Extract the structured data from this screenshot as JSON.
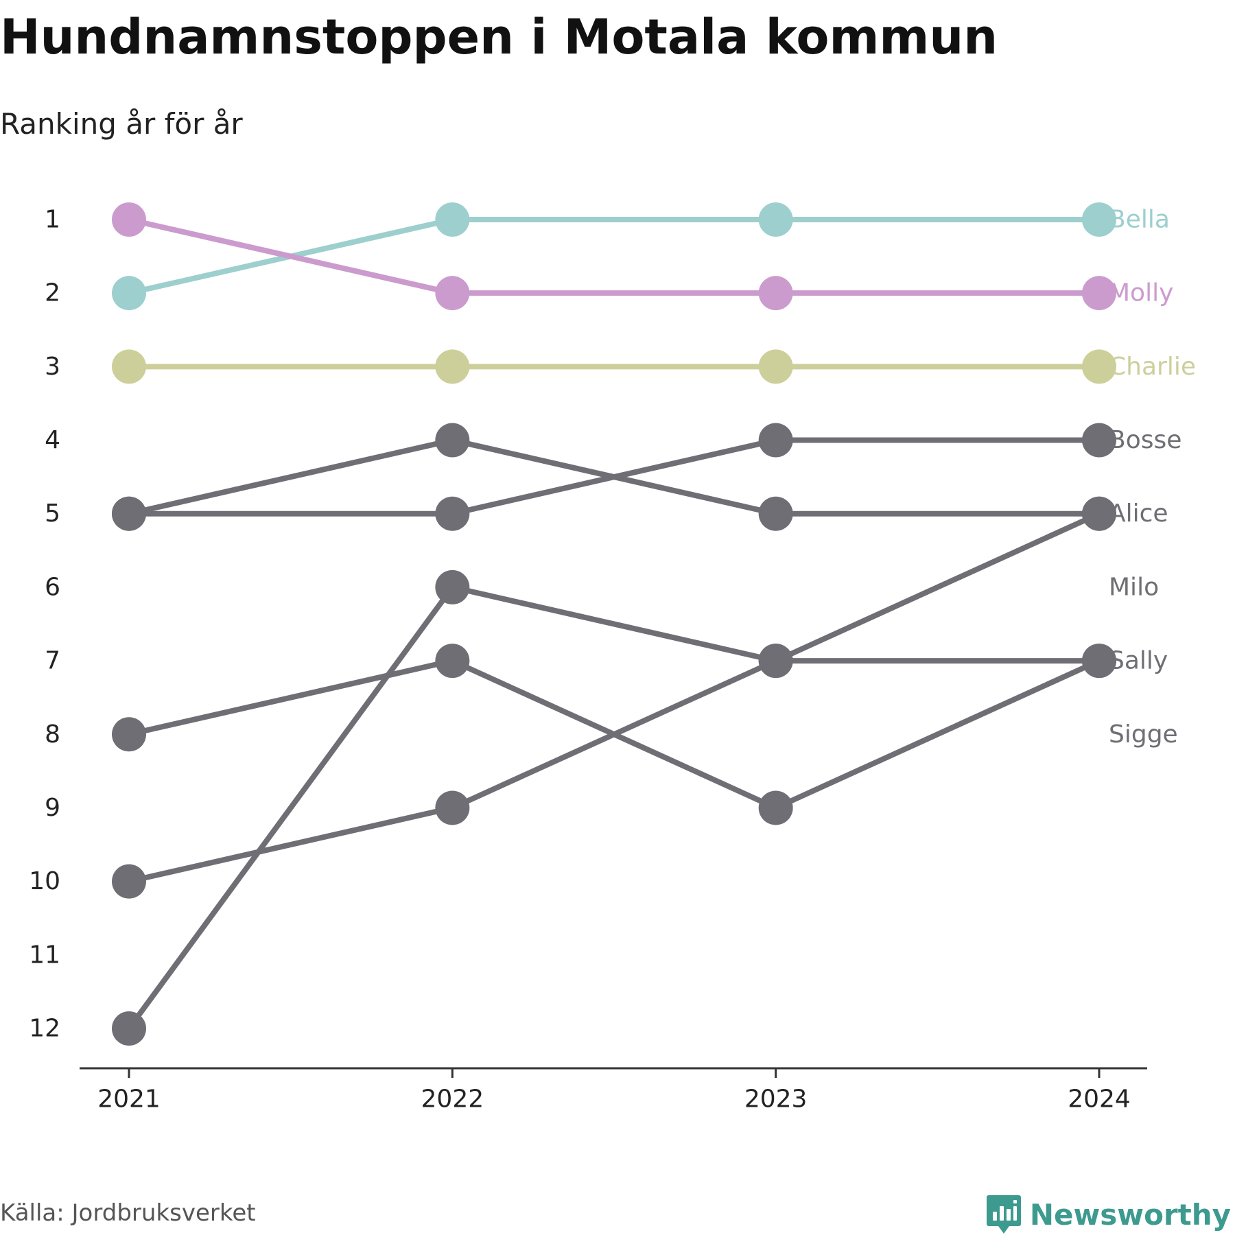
{
  "title": "Hundnamnstoppen i Motala kommun",
  "subtitle": "Ranking år för år",
  "source": "Källa: Jordbruksverket",
  "brand": "Newsworthy",
  "colors": {
    "highlight_grey": "#6e6e74",
    "axis": "#333333",
    "brand": "#3d9a8f"
  },
  "chart_data": {
    "type": "line",
    "x": [
      "2021",
      "2022",
      "2023",
      "2024"
    ],
    "ylim": [
      1,
      12
    ],
    "y_reversed": true,
    "y_ticks": [
      1,
      2,
      3,
      4,
      5,
      6,
      7,
      8,
      9,
      10,
      11,
      12
    ],
    "series": [
      {
        "name": "Bella",
        "color": "#9ccfcd",
        "values": [
          2,
          1,
          1,
          1
        ]
      },
      {
        "name": "Molly",
        "color": "#cc9bce",
        "values": [
          1,
          2,
          2,
          2
        ]
      },
      {
        "name": "Charlie",
        "color": "#cdcf9b",
        "values": [
          3,
          3,
          3,
          3
        ]
      },
      {
        "name": "Bosse",
        "color": "#6e6e74",
        "values": [
          5,
          5,
          4,
          4
        ]
      },
      {
        "name": "Alice",
        "color": "#6e6e74",
        "values": [
          5,
          4,
          5,
          5
        ]
      },
      {
        "name": "Milo",
        "color": "#6e6e74",
        "values": [
          10,
          9,
          7,
          5
        ]
      },
      {
        "name": "Sally",
        "color": "#6e6e74",
        "values": [
          12,
          6,
          7,
          7
        ]
      },
      {
        "name": "Sigge",
        "color": "#6e6e74",
        "values": [
          8,
          7,
          9,
          7
        ]
      }
    ],
    "label_ranks": [
      1,
      2,
      3,
      4,
      5,
      6,
      7,
      8
    ]
  }
}
